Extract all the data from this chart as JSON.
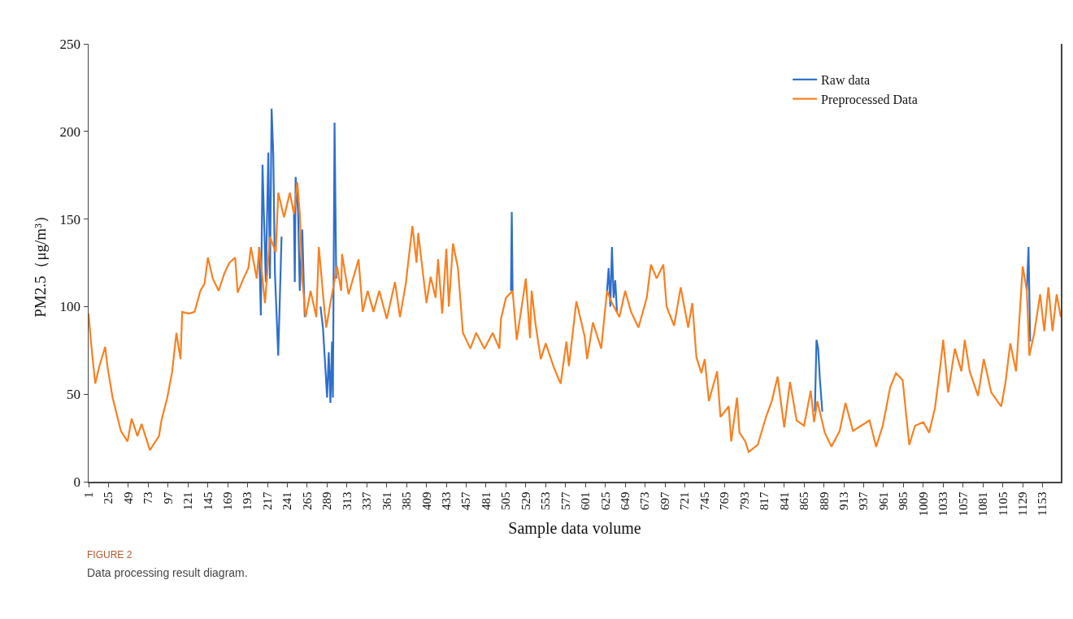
{
  "chart_data": {
    "type": "line",
    "xlabel": "Sample data volume",
    "ylabel": "PM2.5（μg/m³）",
    "annotations": [
      "FIGURE 2",
      "Data processing result diagram."
    ],
    "xlim": [
      1,
      1175
    ],
    "ylim": [
      0,
      250
    ],
    "xticks": [
      1,
      25,
      49,
      73,
      97,
      121,
      145,
      169,
      193,
      217,
      241,
      265,
      289,
      313,
      337,
      361,
      385,
      409,
      433,
      457,
      481,
      505,
      529,
      553,
      577,
      601,
      625,
      649,
      673,
      697,
      721,
      745,
      769,
      793,
      817,
      841,
      865,
      889,
      913,
      937,
      961,
      985,
      1009,
      1033,
      1057,
      1081,
      1105,
      1129,
      1153
    ],
    "yticks": [
      0,
      50,
      100,
      150,
      200,
      250
    ],
    "grid": false,
    "legend": "top right",
    "marker": "none",
    "line_style": "solid",
    "series": [
      {
        "name": "Raw data",
        "color": "#2e6fcc",
        "x": [
          207,
          209,
          211,
          215,
          218,
          220,
          222,
          224,
          226,
          230,
          234,
          242,
          249,
          250,
          251,
          254,
          256,
          259,
          262,
          272,
          281,
          284,
          286,
          289,
          291,
          293,
          295,
          296,
          298,
          300,
          400,
          511,
          512,
          513,
          570,
          625,
          627,
          629,
          631,
          633,
          635,
          637,
          639,
          760,
          878,
          880,
          882,
          884,
          887,
          890,
          1000,
          1134,
          1136,
          1138
        ],
        "values": [
          134,
          95,
          181,
          114,
          188,
          116,
          213,
          187,
          119,
          72,
          140,
          null,
          153,
          114,
          174,
          154,
          109,
          144,
          94,
          null,
          100,
          88,
          72,
          48,
          74,
          45,
          80,
          48,
          205,
          116,
          null,
          109,
          154,
          109,
          null,
          null,
          109,
          122,
          100,
          134,
          105,
          115,
          97,
          null,
          40,
          81,
          76,
          59,
          40,
          null,
          null,
          109,
          134,
          80
        ]
      },
      {
        "name": "Preprocessed Data",
        "color": "#f98020",
        "x": [
          1,
          4,
          9,
          14,
          21,
          24,
          30,
          40,
          48,
          53,
          60,
          65,
          75,
          86,
          89,
          96,
          102,
          107,
          112,
          114,
          122,
          129,
          136,
          141,
          145,
          151,
          158,
          165,
          171,
          178,
          181,
          188,
          194,
          197,
          204,
          207,
          214,
          220,
          227,
          230,
          237,
          244,
          249,
          253,
          256,
          259,
          263,
          269,
          276,
          279,
          286,
          288,
          293,
          301,
          306,
          307,
          315,
          327,
          332,
          338,
          345,
          352,
          361,
          371,
          377,
          384,
          392,
          397,
          399,
          409,
          414,
          420,
          423,
          428,
          433,
          436,
          441,
          447,
          453,
          462,
          469,
          479,
          489,
          497,
          499,
          505,
          513,
          518,
          529,
          534,
          536,
          541,
          547,
          553,
          563,
          571,
          578,
          581,
          590,
          600,
          603,
          610,
          620,
          627,
          633,
          642,
          649,
          656,
          665,
          675,
          680,
          687,
          695,
          699,
          708,
          716,
          725,
          730,
          735,
          741,
          745,
          750,
          760,
          764,
          774,
          777,
          784,
          787,
          794,
          798,
          809,
          819,
          826,
          833,
          841,
          848,
          856,
          865,
          873,
          877,
          881,
          890,
          898,
          908,
          915,
          924,
          934,
          944,
          952,
          960,
          969,
          976,
          984,
          992,
          999,
          1009,
          1016,
          1023,
          1030,
          1033,
          1039,
          1047,
          1055,
          1059,
          1065,
          1075,
          1082,
          1091,
          1103,
          1108,
          1114,
          1121,
          1129,
          1134,
          1137,
          1143,
          1150,
          1155,
          1160,
          1165,
          1170,
          1175
        ],
        "values": [
          96,
          79,
          56,
          66,
          77,
          65,
          48,
          29,
          23,
          36,
          26,
          33,
          18,
          26,
          35,
          48,
          63,
          85,
          70,
          97,
          96,
          97,
          109,
          113,
          128,
          116,
          109,
          119,
          125,
          128,
          108,
          116,
          122,
          134,
          116,
          134,
          102,
          140,
          131,
          165,
          151,
          165,
          153,
          171,
          153,
          116,
          94,
          109,
          94,
          134,
          97,
          88,
          102,
          123,
          109,
          130,
          107,
          127,
          97,
          109,
          97,
          109,
          93,
          114,
          94,
          113,
          146,
          125,
          142,
          102,
          117,
          105,
          127,
          96,
          133,
          100,
          136,
          122,
          85,
          76,
          85,
          76,
          85,
          76,
          93,
          105,
          109,
          81,
          116,
          82,
          109,
          89,
          70,
          79,
          65,
          56,
          80,
          66,
          103,
          83,
          70,
          91,
          76,
          109,
          102,
          94,
          109,
          97,
          88,
          105,
          124,
          116,
          124,
          100,
          89,
          111,
          88,
          102,
          71,
          62,
          70,
          46,
          63,
          37,
          43,
          23,
          48,
          28,
          23,
          17,
          21,
          37,
          46,
          60,
          31,
          57,
          35,
          32,
          52,
          34,
          46,
          28,
          20,
          29,
          45,
          29,
          32,
          35,
          20,
          32,
          54,
          62,
          58,
          21,
          32,
          34,
          28,
          42,
          68,
          81,
          51,
          76,
          63,
          81,
          63,
          49,
          70,
          51,
          43,
          56,
          79,
          63,
          123,
          109,
          72,
          85,
          107,
          86,
          111,
          86,
          107,
          94
        ]
      }
    ]
  }
}
